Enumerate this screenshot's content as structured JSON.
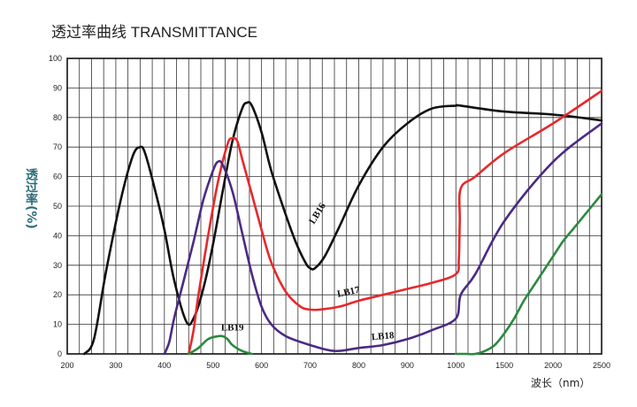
{
  "title": "透过率曲线 TRANSMITTANCE",
  "chart_data": {
    "type": "line",
    "title": "透过率曲线 TRANSMITTANCE",
    "ylabel": "透过率(%)",
    "xlabel": "波长（nm）",
    "ylim": [
      0,
      100
    ],
    "grid": true,
    "x_tick_labels": [
      "200",
      "300",
      "400",
      "500",
      "600",
      "700",
      "800",
      "900",
      "1000",
      "1500",
      "2000",
      "2500"
    ],
    "y_tick_labels": [
      "0",
      "10",
      "20",
      "30",
      "40",
      "50",
      "60",
      "70",
      "80",
      "90",
      "100"
    ],
    "series": [
      {
        "name": "LB16",
        "color": "#111111",
        "x": [
          235,
          255,
          280,
          310,
          335,
          350,
          360,
          380,
          400,
          420,
          445,
          460,
          480,
          500,
          520,
          540,
          560,
          570,
          580,
          600,
          620,
          650,
          670,
          690,
          700,
          710,
          730,
          760,
          800,
          850,
          900,
          950,
          1000,
          1050,
          1500,
          2000,
          2500
        ],
        "y": [
          0,
          5,
          28,
          52,
          67,
          70,
          68,
          56,
          42,
          25,
          11,
          12,
          22,
          37,
          55,
          72,
          83,
          85,
          84,
          75,
          62,
          47,
          38,
          31,
          29,
          29,
          33,
          43,
          57,
          70,
          78,
          83,
          84,
          84,
          82,
          81,
          79
        ]
      },
      {
        "name": "LB17",
        "color": "#e8282a",
        "x": [
          450,
          460,
          470,
          490,
          510,
          530,
          540,
          550,
          560,
          580,
          600,
          620,
          650,
          680,
          700,
          720,
          760,
          800,
          850,
          900,
          950,
          1000,
          1030,
          1040,
          1050,
          1200,
          1500,
          2000,
          2500
        ],
        "y": [
          0,
          8,
          20,
          40,
          58,
          71,
          73,
          72,
          66,
          54,
          42,
          31,
          21,
          16,
          15,
          15,
          16,
          18,
          20,
          22,
          24,
          27,
          32,
          45,
          56,
          60,
          68,
          78,
          89
        ]
      },
      {
        "name": "LB18",
        "color": "#4b2a84",
        "x": [
          400,
          410,
          420,
          440,
          460,
          480,
          500,
          510,
          520,
          540,
          560,
          580,
          600,
          620,
          650,
          700,
          750,
          800,
          850,
          900,
          950,
          1000,
          1050,
          1200,
          1500,
          2000,
          2500
        ],
        "y": [
          0,
          4,
          12,
          25,
          38,
          52,
          62,
          65,
          64,
          55,
          41,
          27,
          16,
          10,
          6,
          3,
          1,
          2,
          3,
          5,
          8,
          12,
          20,
          27,
          45,
          65,
          78
        ]
      },
      {
        "name": "LB19",
        "color": "#2a8a3e",
        "x": [
          450,
          470,
          490,
          510,
          520,
          530,
          540,
          560,
          580
        ],
        "y": [
          0,
          2,
          5,
          6,
          6,
          5,
          3,
          1,
          0
        ]
      },
      {
        "name": "",
        "color": "#2a8a3e",
        "x": [
          1000,
          1100,
          1200,
          1300,
          1400,
          1500,
          1600,
          1700,
          1800,
          1900,
          2000,
          2100,
          2200,
          2300,
          2400,
          2500
        ],
        "y": [
          0,
          0,
          0,
          1,
          3,
          7,
          12,
          18,
          23,
          28,
          33,
          38,
          42,
          46,
          50,
          54
        ]
      }
    ],
    "series_labels": [
      {
        "text": "LB16",
        "x": 720,
        "y": 47
      },
      {
        "text": "LB17",
        "x": 780,
        "y": 20
      },
      {
        "text": "LB18",
        "x": 850,
        "y": 5
      },
      {
        "text": "LB19",
        "x": 540,
        "y": 8
      }
    ]
  }
}
